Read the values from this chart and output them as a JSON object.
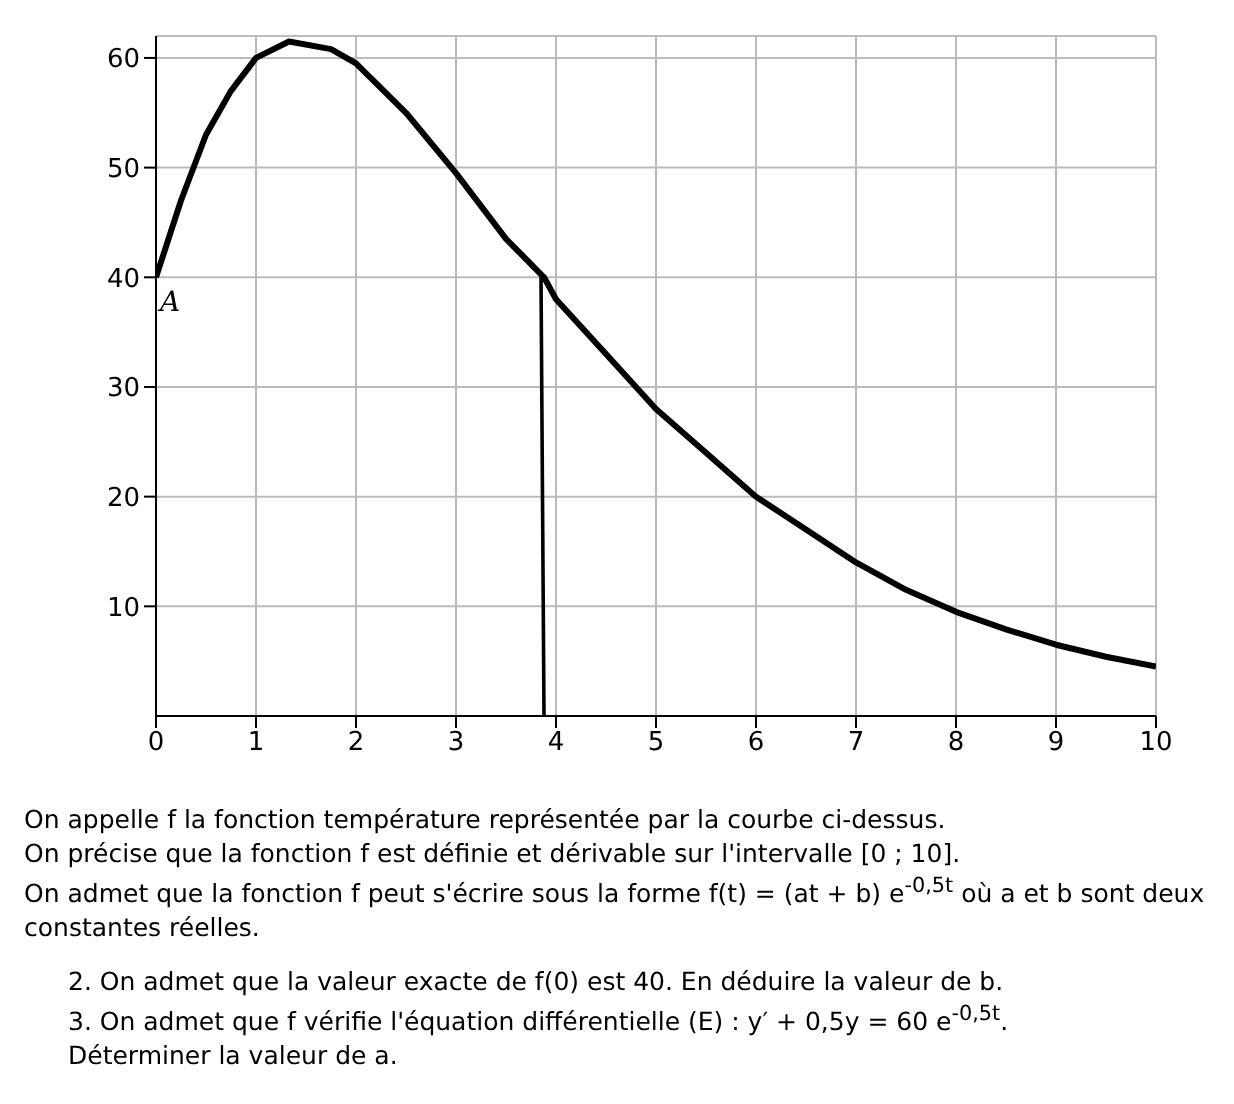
{
  "chart_data": {
    "type": "line",
    "xlim": [
      0,
      10
    ],
    "ylim": [
      0,
      62
    ],
    "xticks": [
      0,
      1,
      2,
      3,
      4,
      5,
      6,
      7,
      8,
      9,
      10
    ],
    "yticks": [
      10,
      20,
      30,
      40,
      50,
      60
    ],
    "grid": true,
    "marker": "none",
    "line_style": "solid",
    "series": [
      {
        "color": "#000000",
        "x": [
          0,
          0.25,
          0.5,
          0.75,
          1,
          1.33,
          1.75,
          2,
          2.5,
          3,
          3.5,
          3.88,
          4,
          4.5,
          5,
          5.5,
          6,
          6.5,
          7,
          7.5,
          8,
          8.5,
          9,
          9.5,
          10
        ],
        "values": [
          40,
          47,
          53,
          57,
          60,
          61.5,
          60.8,
          59.5,
          55,
          49.5,
          43.5,
          40,
          38,
          33,
          28,
          24,
          20,
          17,
          14,
          11.5,
          9.5,
          7.9,
          6.5,
          5.4,
          4.5
        ]
      },
      {
        "color": "#000000",
        "x": [
          3.85,
          3.88
        ],
        "values": [
          40,
          0
        ]
      }
    ],
    "annotations": [
      {
        "text": "A",
        "x": 0,
        "y": 40
      },
      "On appelle f la fonction température représentée par la courbe ci-dessus.",
      "On précise que la fonction f est définie et dérivable sur l'intervalle [0 ; 10].",
      "On admet que la fonction f peut s'écrire sous la forme f(t) = (at + b) e$^{-0,5t}$ où a et b sont deux constantes réelles.",
      "2. On admet que la valeur exacte de f(0) est 40. En déduire la valeur de b.",
      "3. On admet que f vérifie l'équation différentielle (E) : y′ + 0,5y = 60 e$^{-0,5t}$.",
      "Déterminer la valeur de a."
    ]
  }
}
